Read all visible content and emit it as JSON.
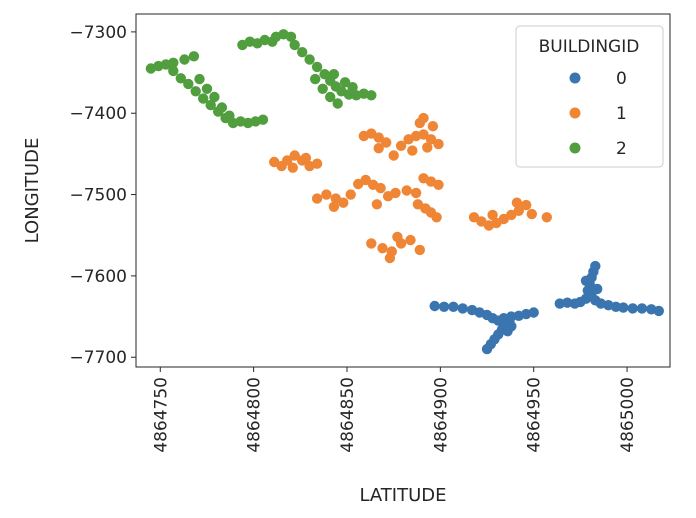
{
  "chart_data": {
    "type": "scatter",
    "title": "",
    "xlabel": "LATITUDE",
    "ylabel": "LONGITUDE",
    "xlim": [
      4864737,
      4865023
    ],
    "ylim": [
      -7712,
      -7278
    ],
    "x_ticks": [
      4864750,
      4864800,
      4864850,
      4864900,
      4864950,
      4865000
    ],
    "y_ticks": [
      -7300,
      -7400,
      -7500,
      -7600,
      -7700
    ],
    "grid": false,
    "legend": {
      "title": "BUILDINGID",
      "placement": "top-right"
    },
    "series": [
      {
        "name": "0",
        "color": "#3a75af",
        "points": [
          [
            4864897,
            -7637
          ],
          [
            4864902,
            -7638
          ],
          [
            4864907,
            -7638
          ],
          [
            4864912,
            -7640
          ],
          [
            4864917,
            -7642
          ],
          [
            4864921,
            -7645
          ],
          [
            4864925,
            -7648
          ],
          [
            4864928,
            -7652
          ],
          [
            4864931,
            -7655
          ],
          [
            4864934,
            -7652
          ],
          [
            4864938,
            -7650
          ],
          [
            4864942,
            -7649
          ],
          [
            4864946,
            -7647
          ],
          [
            4864950,
            -7645
          ],
          [
            4864925,
            -7690
          ],
          [
            4864927,
            -7684
          ],
          [
            4864929,
            -7678
          ],
          [
            4864931,
            -7672
          ],
          [
            4864933,
            -7666
          ],
          [
            4864935,
            -7660
          ],
          [
            4864937,
            -7656
          ],
          [
            4864936,
            -7668
          ],
          [
            4864938,
            -7662
          ],
          [
            4864964,
            -7634
          ],
          [
            4864968,
            -7633
          ],
          [
            4864972,
            -7634
          ],
          [
            4864975,
            -7632
          ],
          [
            4864978,
            -7628
          ],
          [
            4864981,
            -7625
          ],
          [
            4864983,
            -7630
          ],
          [
            4864986,
            -7634
          ],
          [
            4864990,
            -7636
          ],
          [
            4864994,
            -7638
          ],
          [
            4864998,
            -7639
          ],
          [
            4865003,
            -7640
          ],
          [
            4865008,
            -7640
          ],
          [
            4865013,
            -7641
          ],
          [
            4865017,
            -7643
          ],
          [
            4864979,
            -7618
          ],
          [
            4864980,
            -7610
          ],
          [
            4864981,
            -7602
          ],
          [
            4864982,
            -7595
          ],
          [
            4864983,
            -7588
          ],
          [
            4864984,
            -7616
          ],
          [
            4864978,
            -7606
          ]
        ]
      },
      {
        "name": "1",
        "color": "#ef8636",
        "points": [
          [
            4864811,
            -7460
          ],
          [
            4864815,
            -7465
          ],
          [
            4864818,
            -7458
          ],
          [
            4864822,
            -7452
          ],
          [
            4864826,
            -7458
          ],
          [
            4864830,
            -7465
          ],
          [
            4864834,
            -7462
          ],
          [
            4864821,
            -7467
          ],
          [
            4864828,
            -7455
          ],
          [
            4864834,
            -7505
          ],
          [
            4864839,
            -7500
          ],
          [
            4864844,
            -7505
          ],
          [
            4864848,
            -7510
          ],
          [
            4864852,
            -7500
          ],
          [
            4864843,
            -7515
          ],
          [
            4864856,
            -7487
          ],
          [
            4864860,
            -7482
          ],
          [
            4864864,
            -7488
          ],
          [
            4864868,
            -7492
          ],
          [
            4864872,
            -7502
          ],
          [
            4864866,
            -7512
          ],
          [
            4864876,
            -7498
          ],
          [
            4864859,
            -7428
          ],
          [
            4864863,
            -7425
          ],
          [
            4864867,
            -7430
          ],
          [
            4864871,
            -7436
          ],
          [
            4864867,
            -7443
          ],
          [
            4864875,
            -7452
          ],
          [
            4864879,
            -7440
          ],
          [
            4864883,
            -7432
          ],
          [
            4864887,
            -7428
          ],
          [
            4864891,
            -7426
          ],
          [
            4864895,
            -7432
          ],
          [
            4864899,
            -7438
          ],
          [
            4864893,
            -7442
          ],
          [
            4864885,
            -7446
          ],
          [
            4864889,
            -7412
          ],
          [
            4864891,
            -7406
          ],
          [
            4864896,
            -7416
          ],
          [
            4864882,
            -7495
          ],
          [
            4864887,
            -7498
          ],
          [
            4864891,
            -7480
          ],
          [
            4864895,
            -7484
          ],
          [
            4864899,
            -7488
          ],
          [
            4864888,
            -7512
          ],
          [
            4864892,
            -7517
          ],
          [
            4864895,
            -7522
          ],
          [
            4864898,
            -7528
          ],
          [
            4864863,
            -7560
          ],
          [
            4864869,
            -7566
          ],
          [
            4864874,
            -7570
          ],
          [
            4864879,
            -7560
          ],
          [
            4864884,
            -7556
          ],
          [
            4864889,
            -7568
          ],
          [
            4864873,
            -7578
          ],
          [
            4864877,
            -7552
          ],
          [
            4864918,
            -7528
          ],
          [
            4864922,
            -7533
          ],
          [
            4864926,
            -7538
          ],
          [
            4864930,
            -7535
          ],
          [
            4864934,
            -7530
          ],
          [
            4864938,
            -7525
          ],
          [
            4864942,
            -7520
          ],
          [
            4864946,
            -7513
          ],
          [
            4864941,
            -7510
          ],
          [
            4864949,
            -7524
          ],
          [
            4864957,
            -7528
          ],
          [
            4864928,
            -7525
          ]
        ]
      },
      {
        "name": "2",
        "color": "#519e3e",
        "points": [
          [
            4864745,
            -7345
          ],
          [
            4864749,
            -7342
          ],
          [
            4864753,
            -7340
          ],
          [
            4864757,
            -7348
          ],
          [
            4864761,
            -7357
          ],
          [
            4864765,
            -7364
          ],
          [
            4864769,
            -7373
          ],
          [
            4864773,
            -7382
          ],
          [
            4864777,
            -7390
          ],
          [
            4864781,
            -7398
          ],
          [
            4864785,
            -7406
          ],
          [
            4864789,
            -7412
          ],
          [
            4864793,
            -7410
          ],
          [
            4864797,
            -7412
          ],
          [
            4864801,
            -7410
          ],
          [
            4864805,
            -7408
          ],
          [
            4864757,
            -7338
          ],
          [
            4864763,
            -7334
          ],
          [
            4864768,
            -7330
          ],
          [
            4864771,
            -7358
          ],
          [
            4864775,
            -7370
          ],
          [
            4864779,
            -7380
          ],
          [
            4864783,
            -7393
          ],
          [
            4864787,
            -7403
          ],
          [
            4864794,
            -7316
          ],
          [
            4864798,
            -7312
          ],
          [
            4864802,
            -7314
          ],
          [
            4864806,
            -7310
          ],
          [
            4864810,
            -7312
          ],
          [
            4864812,
            -7306
          ],
          [
            4864816,
            -7303
          ],
          [
            4864820,
            -7306
          ],
          [
            4864822,
            -7316
          ],
          [
            4864826,
            -7325
          ],
          [
            4864830,
            -7334
          ],
          [
            4864834,
            -7343
          ],
          [
            4864838,
            -7352
          ],
          [
            4864841,
            -7360
          ],
          [
            4864844,
            -7367
          ],
          [
            4864847,
            -7373
          ],
          [
            4864851,
            -7377
          ],
          [
            4864855,
            -7378
          ],
          [
            4864859,
            -7376
          ],
          [
            4864863,
            -7378
          ],
          [
            4864833,
            -7358
          ],
          [
            4864837,
            -7370
          ],
          [
            4864841,
            -7380
          ],
          [
            4864845,
            -7388
          ],
          [
            4864843,
            -7352
          ],
          [
            4864849,
            -7362
          ],
          [
            4864853,
            -7368
          ]
        ]
      }
    ]
  }
}
